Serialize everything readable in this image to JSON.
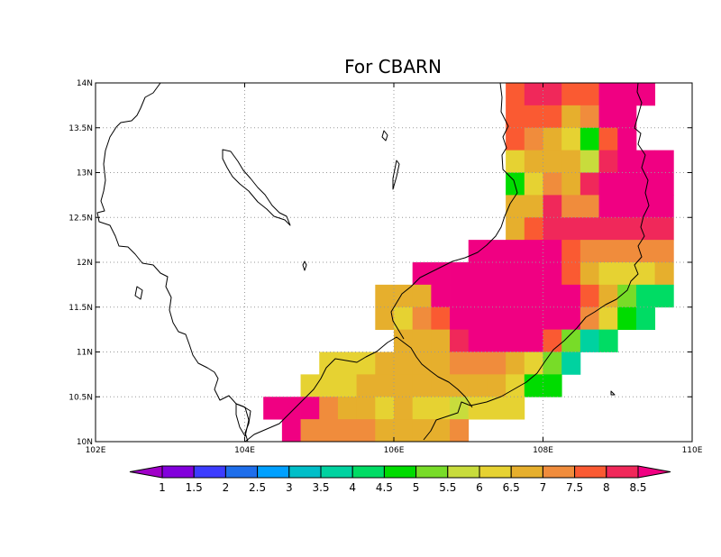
{
  "title": "For CBARN",
  "map": {
    "lon_range": [
      102,
      110
    ],
    "lat_range": [
      10,
      14
    ],
    "x_ticks": [
      "102E",
      "104E",
      "106E",
      "108E",
      "110E"
    ],
    "y_ticks": [
      "10N",
      "10.5N",
      "11N",
      "11.5N",
      "12N",
      "12.5N",
      "13N",
      "13.5N",
      "14N"
    ],
    "grid": true,
    "coastline_color": "#000000"
  },
  "colorbar": {
    "labels": [
      "1",
      "1.5",
      "2",
      "2.5",
      "3",
      "3.5",
      "4",
      "4.5",
      "5",
      "5.5",
      "6",
      "6.5",
      "7",
      "7.5",
      "8",
      "8.5"
    ],
    "colors": [
      "#a000c8",
      "#8200dc",
      "#3c3cff",
      "#1e6eeb",
      "#00a0ff",
      "#00bec8",
      "#00d2a0",
      "#00dc64",
      "#00dc00",
      "#78dc28",
      "#c8dc3c",
      "#e6d232",
      "#e6af2d",
      "#f08c3c",
      "#fa5a32",
      "#f0285a",
      "#f00082"
    ]
  },
  "chart_data": {
    "type": "heatmap",
    "title": "For CBARN",
    "xlabel": "",
    "ylabel": "",
    "x_ticks": [
      "102E",
      "104E",
      "106E",
      "108E",
      "110E"
    ],
    "y_ticks": [
      "10N",
      "10.5N",
      "11N",
      "11.5N",
      "12N",
      "12.5N",
      "13N",
      "13.5N",
      "14N"
    ],
    "xlim": [
      102,
      110
    ],
    "ylim": [
      10,
      14
    ],
    "cell_size_deg": 0.25,
    "levels": [
      1,
      1.5,
      2,
      2.5,
      3,
      3.5,
      4,
      4.5,
      5,
      5.5,
      6,
      6.5,
      7,
      7.5,
      8,
      8.5
    ],
    "rows": [
      {
        "lat": 13.875,
        "lon_start": 107.5,
        "values": [
          7.75,
          8.25,
          8.25,
          7.75,
          7.75,
          8.75,
          8.75,
          8.75
        ]
      },
      {
        "lat": 13.625,
        "lon_start": 107.5,
        "values": [
          7.75,
          7.75,
          7.75,
          6.75,
          7.25,
          8.75,
          8.75
        ]
      },
      {
        "lat": 13.375,
        "lon_start": 107.5,
        "values": [
          7.75,
          7.25,
          6.75,
          6.25,
          4.75,
          7.75,
          8.75
        ]
      },
      {
        "lat": 13.125,
        "lon_start": 107.5,
        "values": [
          6.25,
          6.75,
          6.75,
          6.75,
          5.75,
          8.25,
          8.75,
          8.75,
          8.75
        ]
      },
      {
        "lat": 12.875,
        "lon_start": 107.5,
        "values": [
          4.75,
          6.25,
          7.25,
          6.75,
          8.25,
          8.75,
          8.75,
          8.75,
          8.75
        ]
      },
      {
        "lat": 12.625,
        "lon_start": 107.5,
        "values": [
          6.75,
          6.75,
          8.25,
          7.25,
          7.25,
          8.75,
          8.75,
          8.75,
          8.75
        ]
      },
      {
        "lat": 12.375,
        "lon_start": 107.5,
        "values": [
          6.75,
          7.75,
          8.25,
          8.25,
          8.25,
          8.25,
          8.25,
          8.25,
          8.25
        ]
      },
      {
        "lat": 12.125,
        "lon_start": 107.0,
        "values": [
          8.75,
          8.75,
          8.75,
          8.75,
          8.75,
          7.75,
          7.25,
          7.25,
          7.25,
          7.25,
          7.25
        ]
      },
      {
        "lat": 11.875,
        "lon_start": 106.25,
        "values": [
          8.75,
          8.75,
          8.75,
          8.75,
          8.75,
          8.75,
          8.75,
          8.75,
          7.75,
          6.75,
          6.25,
          6.25,
          6.25,
          6.75
        ]
      },
      {
        "lat": 11.625,
        "lon_start": 105.75,
        "values": [
          6.75,
          6.75,
          6.75,
          8.75,
          8.75,
          8.75,
          8.75,
          8.75,
          8.75,
          8.75,
          8.75,
          7.75,
          6.75,
          5.25,
          4.25,
          4.25
        ]
      },
      {
        "lat": 11.375,
        "lon_start": 105.75,
        "values": [
          6.75,
          6.25,
          7.25,
          7.75,
          8.75,
          8.75,
          8.75,
          8.75,
          8.75,
          8.75,
          8.75,
          7.25,
          6.25,
          4.75,
          4.25
        ]
      },
      {
        "lat": 11.125,
        "lon_start": 106.0,
        "values": [
          6.75,
          6.75,
          6.75,
          8.25,
          8.75,
          8.75,
          8.75,
          8.75,
          7.75,
          5.25,
          3.75,
          4.25
        ]
      },
      {
        "lat": 10.875,
        "lon_start": 105.0,
        "values": [
          6.25,
          6.25,
          6.25,
          6.75,
          6.75,
          6.75,
          6.75,
          7.25,
          7.25,
          7.25,
          6.75,
          6.25,
          5.25,
          3.75
        ]
      },
      {
        "lat": 10.625,
        "lon_start": 104.75,
        "values": [
          6.25,
          6.25,
          6.25,
          6.75,
          6.75,
          6.75,
          6.75,
          6.75,
          6.75,
          6.75,
          6.75,
          6.25,
          4.75,
          4.75
        ]
      },
      {
        "lat": 10.375,
        "lon_start": 104.25,
        "values": [
          8.75,
          8.75,
          8.75,
          7.25,
          6.75,
          6.75,
          6.25,
          6.75,
          6.25,
          6.25,
          5.75,
          6.25,
          6.25,
          6.25
        ]
      },
      {
        "lat": 10.125,
        "lon_start": 104.5,
        "values": [
          8.75,
          7.25,
          7.25,
          7.25,
          7.25,
          6.75,
          6.75,
          6.75,
          6.75,
          7.25
        ]
      }
    ]
  }
}
